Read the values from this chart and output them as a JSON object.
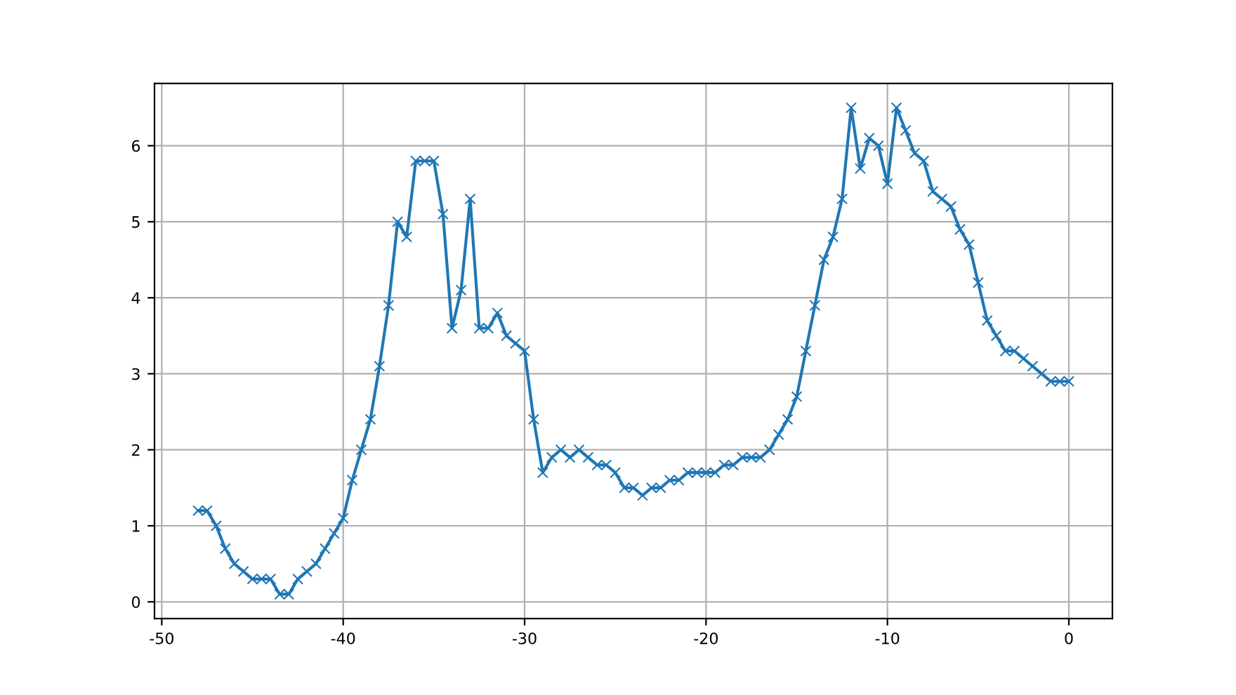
{
  "chart_data": {
    "type": "line",
    "x": [
      -48,
      -47.5,
      -47,
      -46.5,
      -46,
      -45.5,
      -45,
      -44.5,
      -44,
      -43.5,
      -43,
      -42.5,
      -42,
      -41.5,
      -41,
      -40.5,
      -40,
      -39.5,
      -39,
      -38.5,
      -38,
      -37.5,
      -37,
      -36.5,
      -36,
      -35.5,
      -35,
      -34.5,
      -34,
      -33.5,
      -33,
      -32.5,
      -32,
      -31.5,
      -31,
      -30.5,
      -30,
      -29.5,
      -29,
      -28.5,
      -28,
      -27.5,
      -27,
      -26.5,
      -26,
      -25.5,
      -25,
      -24.5,
      -24,
      -23.5,
      -23,
      -22.5,
      -22,
      -21.5,
      -21,
      -20.5,
      -20,
      -19.5,
      -19,
      -18.5,
      -18,
      -17.5,
      -17,
      -16.5,
      -16,
      -15.5,
      -15,
      -14.5,
      -14,
      -13.5,
      -13,
      -12.5,
      -12,
      -11.5,
      -11,
      -10.5,
      -10,
      -9.5,
      -9,
      -8.5,
      -8,
      -7.5,
      -7,
      -6.5,
      -6,
      -5.5,
      -5,
      -4.5,
      -4,
      -3.5,
      -3,
      -2.5,
      -2,
      -1.5,
      -1,
      -0.5,
      0
    ],
    "series": [
      {
        "color": "#1f77b4",
        "values": [
          1.2,
          1.2,
          1.0,
          0.7,
          0.5,
          0.4,
          0.3,
          0.3,
          0.3,
          0.1,
          0.1,
          0.3,
          0.4,
          0.5,
          0.7,
          0.9,
          1.1,
          1.6,
          2.0,
          2.4,
          3.1,
          3.9,
          5.0,
          4.8,
          5.8,
          5.8,
          5.8,
          5.1,
          3.6,
          4.1,
          5.3,
          3.6,
          3.6,
          3.8,
          3.5,
          3.4,
          3.3,
          2.4,
          1.7,
          1.9,
          2.0,
          1.9,
          2.0,
          1.9,
          1.8,
          1.8,
          1.7,
          1.5,
          1.5,
          1.4,
          1.5,
          1.5,
          1.6,
          1.6,
          1.7,
          1.7,
          1.7,
          1.7,
          1.8,
          1.8,
          1.9,
          1.9,
          1.9,
          2.0,
          2.2,
          2.4,
          2.7,
          3.3,
          3.9,
          4.5,
          4.8,
          5.3,
          6.5,
          5.7,
          6.1,
          6.0,
          5.5,
          6.5,
          6.2,
          5.9,
          5.8,
          5.4,
          5.3,
          5.2,
          4.9,
          4.7,
          4.2,
          3.7,
          3.5,
          3.3,
          3.3,
          3.2,
          3.1,
          3.0,
          2.9,
          2.9,
          2.9
        ]
      }
    ],
    "xlim": [
      -50.4,
      2.4
    ],
    "ylim": [
      -0.22,
      6.82
    ],
    "xticks": [
      -50,
      -40,
      -30,
      -20,
      -10,
      0
    ],
    "yticks": [
      0,
      1,
      2,
      3,
      4,
      5,
      6
    ],
    "grid": true,
    "marker": "cross",
    "line_style": "solid"
  }
}
